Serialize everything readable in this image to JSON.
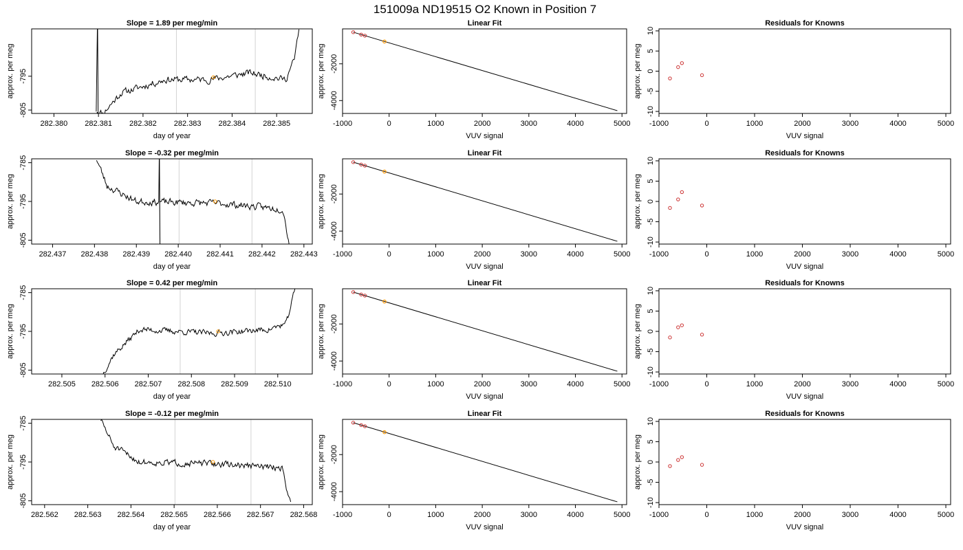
{
  "page_title": "151009a     ND19515   O2 Known in Position  7",
  "colors": {
    "line": "#000000",
    "vline": "#d3d3d3",
    "known_point": "#cc3333",
    "sample_point": "#ff9900",
    "frame": "#000000"
  },
  "chart_data": [
    {
      "type": "line",
      "row": 1,
      "col": 1,
      "title": "Slope =  1.89  per meg/min",
      "xlabel": "day of year",
      "ylabel": "approx. per meg",
      "xlim": [
        282.3795,
        282.3858
      ],
      "ylim": [
        -806,
        -781
      ],
      "xticks": [
        "282.380",
        "282.381",
        "282.382",
        "282.383",
        "282.384",
        "282.385"
      ],
      "xtick_values": [
        282.38,
        282.381,
        282.382,
        282.383,
        282.384,
        282.385
      ],
      "yticks": [
        "-795",
        "-805"
      ],
      "ytick_values": [
        -795,
        -805
      ],
      "vlines": [
        282.38275,
        282.38452
      ],
      "marker": {
        "x": 282.38358,
        "y": -795.3
      },
      "x_start": 282.38095,
      "x_end": 282.3855,
      "noise_seed": 11,
      "amp": 1.6,
      "spike_x": 282.38098,
      "trend": [
        [
          282.38095,
          -805
        ],
        [
          282.3811,
          -806
        ],
        [
          282.3815,
          -800
        ],
        [
          282.3825,
          -796
        ],
        [
          282.3835,
          -796
        ],
        [
          282.3844,
          -794
        ],
        [
          282.3852,
          -796
        ],
        [
          282.3854,
          -790
        ],
        [
          282.3855,
          -781
        ]
      ]
    },
    {
      "type": "line",
      "row": 2,
      "col": 1,
      "title": "Slope =  -0.32  per meg/min",
      "xlabel": "day of year",
      "ylabel": "approx. per meg",
      "xlim": [
        282.4365,
        282.4432
      ],
      "ylim": [
        -806,
        -784
      ],
      "xticks": [
        "282.437",
        "282.438",
        "282.439",
        "282.440",
        "282.441",
        "282.442",
        "282.443"
      ],
      "xtick_values": [
        282.437,
        282.438,
        282.439,
        282.44,
        282.441,
        282.442,
        282.443
      ],
      "yticks": [
        "-785",
        "-795",
        "-805"
      ],
      "ytick_values": [
        -785,
        -795,
        -805
      ],
      "vlines": [
        282.44002,
        282.44176
      ],
      "marker": {
        "x": 282.44088,
        "y": -795.0
      },
      "x_start": 282.43805,
      "x_end": 282.44265,
      "noise_seed": 23,
      "amp": 1.4,
      "spike_x": 282.43955,
      "trend": [
        [
          282.43805,
          -784
        ],
        [
          282.4383,
          -791
        ],
        [
          282.439,
          -795
        ],
        [
          282.441,
          -795.5
        ],
        [
          282.4425,
          -797
        ],
        [
          282.44265,
          -806
        ]
      ]
    },
    {
      "type": "line",
      "row": 3,
      "col": 1,
      "title": "Slope =  0.42  per meg/min",
      "xlabel": "day of year",
      "ylabel": "approx. per meg",
      "xlim": [
        282.5043,
        282.5108
      ],
      "ylim": [
        -806,
        -784
      ],
      "xticks": [
        "282.505",
        "282.506",
        "282.507",
        "282.508",
        "282.509",
        "282.510"
      ],
      "xtick_values": [
        282.505,
        282.506,
        282.507,
        282.508,
        282.509,
        282.51
      ],
      "yticks": [
        "-785",
        "-795",
        "-805"
      ],
      "ytick_values": [
        -785,
        -795,
        -805
      ],
      "vlines": [
        282.50774,
        282.50948
      ],
      "marker": {
        "x": 282.50862,
        "y": -795.0
      },
      "x_start": 282.50595,
      "x_end": 282.5104,
      "noise_seed": 37,
      "amp": 1.2,
      "spike_x": null,
      "trend": [
        [
          282.50595,
          -806
        ],
        [
          282.5062,
          -801
        ],
        [
          282.5068,
          -794.5
        ],
        [
          282.5085,
          -795.5
        ],
        [
          282.5098,
          -794.5
        ],
        [
          282.5102,
          -793
        ],
        [
          282.5104,
          -784
        ]
      ]
    },
    {
      "type": "line",
      "row": 4,
      "col": 1,
      "title": "Slope =  -0.12  per meg/min",
      "xlabel": "day of year",
      "ylabel": "approx. per meg",
      "xlim": [
        282.5617,
        282.5682
      ],
      "ylim": [
        -806,
        -784
      ],
      "xticks": [
        "282.562",
        "282.563",
        "282.564",
        "282.565",
        "282.566",
        "282.567",
        "282.568"
      ],
      "xtick_values": [
        282.562,
        282.563,
        282.564,
        282.565,
        282.566,
        282.567,
        282.568
      ],
      "yticks": [
        "-785",
        "-795",
        "-805"
      ],
      "ytick_values": [
        -785,
        -795,
        -805
      ],
      "vlines": [
        282.56502,
        282.56678
      ],
      "marker": {
        "x": 282.5659,
        "y": -795.0
      },
      "x_start": 282.5633,
      "x_end": 282.5677,
      "noise_seed": 51,
      "amp": 1.3,
      "spike_x": null,
      "trend": [
        [
          282.5633,
          -784
        ],
        [
          282.5636,
          -791
        ],
        [
          282.5642,
          -795
        ],
        [
          282.566,
          -795.5
        ],
        [
          282.5675,
          -796.5
        ],
        [
          282.5677,
          -806
        ]
      ]
    },
    {
      "type": "scatter",
      "row": 1,
      "col": 2,
      "title": "Linear Fit",
      "xlabel": "VUV signal",
      "ylabel": "approx. per meg",
      "xlim": [
        -1000,
        5100
      ],
      "ylim": [
        -4700,
        -100
      ],
      "xticks": [
        "-1000",
        "0",
        "1000",
        "2000",
        "3000",
        "4000",
        "5000"
      ],
      "xtick_values": [
        -1000,
        0,
        1000,
        2000,
        3000,
        4000,
        5000
      ],
      "yticks": [
        "-2000",
        "-4000"
      ],
      "ytick_values": [
        -2000,
        -4000
      ],
      "fit_line": [
        [
          -770,
          -280
        ],
        [
          4900,
          -4550
        ]
      ],
      "known_points": [
        [
          -770,
          -280
        ],
        [
          -600,
          -410
        ],
        [
          -520,
          -470
        ]
      ],
      "sample_points": [
        [
          -100,
          -790
        ]
      ]
    },
    {
      "type": "scatter",
      "row": 2,
      "col": 2,
      "title": "Linear Fit",
      "xlabel": "VUV signal",
      "ylabel": "approx. per meg",
      "xlim": [
        -1000,
        5100
      ],
      "ylim": [
        -4700,
        -100
      ],
      "xticks": [
        "-1000",
        "0",
        "1000",
        "2000",
        "3000",
        "4000",
        "5000"
      ],
      "xtick_values": [
        -1000,
        0,
        1000,
        2000,
        3000,
        4000,
        5000
      ],
      "yticks": [
        "-2000",
        "-4000"
      ],
      "ytick_values": [
        -2000,
        -4000
      ],
      "fit_line": [
        [
          -770,
          -280
        ],
        [
          4900,
          -4550
        ]
      ],
      "known_points": [
        [
          -770,
          -280
        ],
        [
          -600,
          -410
        ],
        [
          -520,
          -470
        ]
      ],
      "sample_points": [
        [
          -100,
          -790
        ]
      ]
    },
    {
      "type": "scatter",
      "row": 3,
      "col": 2,
      "title": "Linear Fit",
      "xlabel": "VUV signal",
      "ylabel": "approx. per meg",
      "xlim": [
        -1000,
        5100
      ],
      "ylim": [
        -4700,
        -100
      ],
      "xticks": [
        "-1000",
        "0",
        "1000",
        "2000",
        "3000",
        "4000",
        "5000"
      ],
      "xtick_values": [
        -1000,
        0,
        1000,
        2000,
        3000,
        4000,
        5000
      ],
      "yticks": [
        "-2000",
        "-4000"
      ],
      "ytick_values": [
        -2000,
        -4000
      ],
      "fit_line": [
        [
          -770,
          -280
        ],
        [
          4900,
          -4550
        ]
      ],
      "known_points": [
        [
          -770,
          -280
        ],
        [
          -600,
          -410
        ],
        [
          -520,
          -470
        ]
      ],
      "sample_points": [
        [
          -100,
          -790
        ]
      ]
    },
    {
      "type": "scatter",
      "row": 4,
      "col": 2,
      "title": "Linear Fit",
      "xlabel": "VUV signal",
      "ylabel": "approx. per meg",
      "xlim": [
        -1000,
        5100
      ],
      "ylim": [
        -4700,
        -100
      ],
      "xticks": [
        "-1000",
        "0",
        "1000",
        "2000",
        "3000",
        "4000",
        "5000"
      ],
      "xtick_values": [
        -1000,
        0,
        1000,
        2000,
        3000,
        4000,
        5000
      ],
      "yticks": [
        "-2000",
        "-4000"
      ],
      "ytick_values": [
        -2000,
        -4000
      ],
      "fit_line": [
        [
          -770,
          -280
        ],
        [
          4900,
          -4550
        ]
      ],
      "known_points": [
        [
          -770,
          -280
        ],
        [
          -600,
          -410
        ],
        [
          -520,
          -470
        ]
      ],
      "sample_points": [
        [
          -100,
          -790
        ]
      ]
    },
    {
      "type": "scatter",
      "row": 1,
      "col": 3,
      "title": "Residuals for Knowns",
      "xlabel": "VUV signal",
      "ylabel": "approx. per meg",
      "xlim": [
        -1000,
        5100
      ],
      "ylim": [
        -10.5,
        10.5
      ],
      "xticks": [
        "-1000",
        "0",
        "1000",
        "2000",
        "3000",
        "4000",
        "5000"
      ],
      "xtick_values": [
        -1000,
        0,
        1000,
        2000,
        3000,
        4000,
        5000
      ],
      "yticks": [
        "10",
        "5",
        "0",
        "-5",
        "-10"
      ],
      "ytick_values": [
        10,
        5,
        0,
        -5,
        -10
      ],
      "known_points": [
        [
          -770,
          -1.8
        ],
        [
          -600,
          1.0
        ],
        [
          -520,
          2.0
        ],
        [
          -100,
          -1.0
        ]
      ]
    },
    {
      "type": "scatter",
      "row": 2,
      "col": 3,
      "title": "Residuals for Knowns",
      "xlabel": "VUV signal",
      "ylabel": "approx. per meg",
      "xlim": [
        -1000,
        5100
      ],
      "ylim": [
        -10.5,
        10.5
      ],
      "xticks": [
        "-1000",
        "0",
        "1000",
        "2000",
        "3000",
        "4000",
        "5000"
      ],
      "xtick_values": [
        -1000,
        0,
        1000,
        2000,
        3000,
        4000,
        5000
      ],
      "yticks": [
        "10",
        "5",
        "0",
        "-5",
        "-10"
      ],
      "ytick_values": [
        10,
        5,
        0,
        -5,
        -10
      ],
      "known_points": [
        [
          -770,
          -1.6
        ],
        [
          -600,
          0.5
        ],
        [
          -520,
          2.3
        ],
        [
          -100,
          -1.0
        ]
      ]
    },
    {
      "type": "scatter",
      "row": 3,
      "col": 3,
      "title": "Residuals for Knowns",
      "xlabel": "VUV signal",
      "ylabel": "approx. per meg",
      "xlim": [
        -1000,
        5100
      ],
      "ylim": [
        -10.5,
        10.5
      ],
      "xticks": [
        "-1000",
        "0",
        "1000",
        "2000",
        "3000",
        "4000",
        "5000"
      ],
      "xtick_values": [
        -1000,
        0,
        1000,
        2000,
        3000,
        4000,
        5000
      ],
      "yticks": [
        "10",
        "5",
        "0",
        "-5",
        "-10"
      ],
      "ytick_values": [
        10,
        5,
        0,
        -5,
        -10
      ],
      "known_points": [
        [
          -770,
          -1.5
        ],
        [
          -600,
          1.0
        ],
        [
          -520,
          1.5
        ],
        [
          -100,
          -0.8
        ]
      ]
    },
    {
      "type": "scatter",
      "row": 4,
      "col": 3,
      "title": "Residuals for Knowns",
      "xlabel": "VUV signal",
      "ylabel": "approx. per meg",
      "xlim": [
        -1000,
        5100
      ],
      "ylim": [
        -10.5,
        10.5
      ],
      "xticks": [
        "-1000",
        "0",
        "1000",
        "2000",
        "3000",
        "4000",
        "5000"
      ],
      "xtick_values": [
        -1000,
        0,
        1000,
        2000,
        3000,
        4000,
        5000
      ],
      "yticks": [
        "10",
        "5",
        "0",
        "-5",
        "-10"
      ],
      "ytick_values": [
        10,
        5,
        0,
        -5,
        -10
      ],
      "known_points": [
        [
          -770,
          -1.0
        ],
        [
          -600,
          0.5
        ],
        [
          -520,
          1.2
        ],
        [
          -100,
          -0.7
        ]
      ]
    }
  ]
}
